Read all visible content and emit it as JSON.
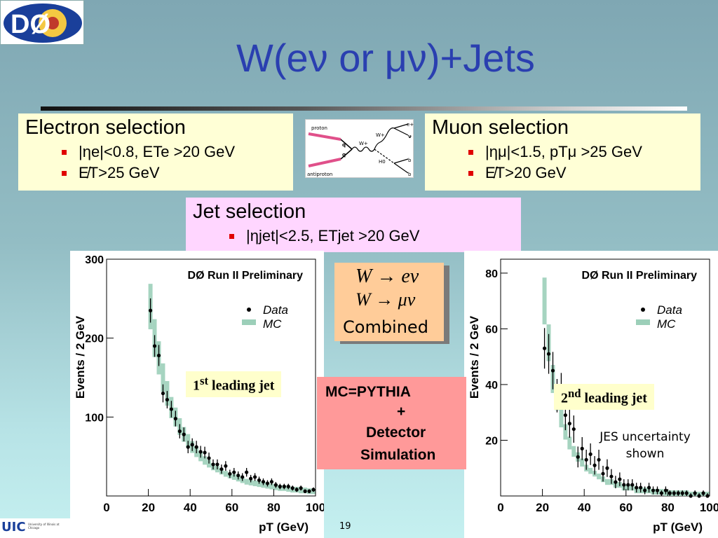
{
  "slide": {
    "title": "W(eν or μν)+Jets",
    "page_number": "19",
    "logo_text": "DØ",
    "uic_logo_text": "UIC",
    "uic_subtext": "University of Illinois at Chicago"
  },
  "electron_box": {
    "heading": "Electron selection",
    "items": [
      "|ηe|<0.8, ETe >20 GeV",
      "E̸T>25 GeV"
    ]
  },
  "muon_box": {
    "heading": "Muon selection",
    "items": [
      "|ημ|<1.5, pTμ >25 GeV",
      "E̸T>20 GeV"
    ]
  },
  "jet_box": {
    "heading": "Jet selection",
    "items": [
      "|ηjet|<2.5, ETjet >20 GeV"
    ]
  },
  "feynman": {
    "labels": [
      "proton",
      "antiproton",
      "q",
      "q",
      "W+",
      "W+",
      "H0",
      "e+",
      "ν",
      "b",
      "b"
    ]
  },
  "combined_box": {
    "line1": "W → eν",
    "line2": "W → μν",
    "line3": "Combined"
  },
  "mc_box": {
    "line1": "MC=PYTHIA",
    "line2": "+",
    "line3": "Detector",
    "line4": "Simulation"
  },
  "jes_note": {
    "line1": "JES uncertainty",
    "line2": "shown"
  },
  "left_label": {
    "main": "1",
    "sup": "st",
    "rest": " leading jet"
  },
  "right_label": {
    "main": "2",
    "sup": "nd",
    "rest": " leading jet"
  },
  "chart_data": [
    {
      "type": "scatter",
      "title": "DØ Run II Preliminary",
      "xlabel": "pT  (GeV)",
      "ylabel": "Events / 2 GeV",
      "xlim": [
        0,
        100
      ],
      "ylim": [
        0,
        300
      ],
      "xticks": [
        0,
        20,
        40,
        60,
        80,
        100
      ],
      "yticks": [
        100,
        200,
        300
      ],
      "legend": {
        "placement": "top-right",
        "entries": [
          "Data",
          "MC"
        ]
      },
      "series": [
        {
          "name": "Data",
          "x": [
            21,
            23,
            25,
            27,
            29,
            31,
            33,
            35,
            37,
            39,
            41,
            43,
            45,
            47,
            49,
            51,
            53,
            55,
            57,
            59,
            61,
            63,
            65,
            67,
            69,
            71,
            73,
            75,
            77,
            79,
            81,
            83,
            85,
            87,
            89,
            91,
            93,
            95,
            97,
            99
          ],
          "y": [
            235,
            190,
            178,
            130,
            122,
            110,
            98,
            82,
            78,
            62,
            65,
            62,
            56,
            55,
            48,
            40,
            40,
            34,
            38,
            28,
            30,
            26,
            24,
            30,
            22,
            24,
            20,
            18,
            16,
            18,
            14,
            12,
            12,
            12,
            10,
            8,
            10,
            6,
            6,
            8
          ]
        },
        {
          "name": "MC",
          "x": [
            21,
            23,
            25,
            27,
            29,
            31,
            33,
            35,
            37,
            39,
            41,
            43,
            45,
            47,
            49,
            51,
            53,
            55,
            57,
            59,
            61,
            63,
            65,
            67,
            69,
            71,
            73,
            75,
            77,
            79,
            81,
            83,
            85,
            87,
            89,
            91,
            93,
            95,
            97,
            99
          ],
          "y": [
            240,
            200,
            175,
            150,
            130,
            112,
            100,
            88,
            78,
            70,
            62,
            56,
            50,
            45,
            41,
            37,
            34,
            31,
            28,
            26,
            24,
            22,
            20,
            18,
            17,
            16,
            15,
            14,
            13,
            12,
            11,
            10,
            10,
            9,
            8,
            8,
            7,
            7,
            6,
            6
          ]
        }
      ]
    },
    {
      "type": "scatter",
      "title": "DØ Run II Preliminary",
      "xlabel": "pT  (GeV)",
      "ylabel": "Events / 2 GeV",
      "xlim": [
        0,
        100
      ],
      "ylim": [
        0,
        85
      ],
      "xticks": [
        0,
        20,
        40,
        60,
        80,
        100
      ],
      "yticks": [
        20,
        40,
        60,
        80
      ],
      "legend": {
        "placement": "top-right",
        "entries": [
          "Data",
          "MC"
        ]
      },
      "series": [
        {
          "name": "Data",
          "x": [
            21,
            23,
            25,
            27,
            29,
            31,
            33,
            35,
            37,
            39,
            41,
            43,
            45,
            47,
            49,
            51,
            53,
            55,
            57,
            59,
            61,
            63,
            65,
            67,
            69,
            71,
            73,
            75,
            77,
            79,
            81,
            83,
            85,
            87,
            89,
            91,
            93,
            95,
            97,
            99
          ],
          "y": [
            53,
            51,
            45,
            36,
            38,
            29,
            26,
            24,
            14,
            17,
            13,
            15,
            11,
            13,
            8,
            10,
            7,
            5,
            6,
            4,
            4,
            4,
            3,
            3,
            2,
            3,
            2,
            2,
            1,
            2,
            1,
            1,
            1,
            1,
            1,
            0,
            1,
            0,
            1,
            0
          ]
        },
        {
          "name": "MC",
          "x": [
            21,
            23,
            25,
            27,
            29,
            31,
            33,
            35,
            37,
            39,
            41,
            43,
            45,
            47,
            49,
            51,
            53,
            55,
            57,
            59,
            61,
            63,
            65,
            67,
            69,
            71,
            73,
            75,
            77,
            79,
            81,
            83,
            85,
            87,
            89,
            91,
            93,
            95,
            97,
            99
          ],
          "y": [
            70,
            55,
            42,
            35,
            28,
            23,
            19,
            16,
            14,
            12,
            10,
            9,
            8,
            7,
            6,
            5,
            5,
            4,
            4,
            3,
            3,
            3,
            2,
            2,
            2,
            2,
            1.5,
            1.5,
            1.5,
            1,
            1,
            1,
            1,
            1,
            1,
            0.5,
            0.5,
            0.5,
            0.5,
            0.5
          ]
        }
      ]
    }
  ]
}
